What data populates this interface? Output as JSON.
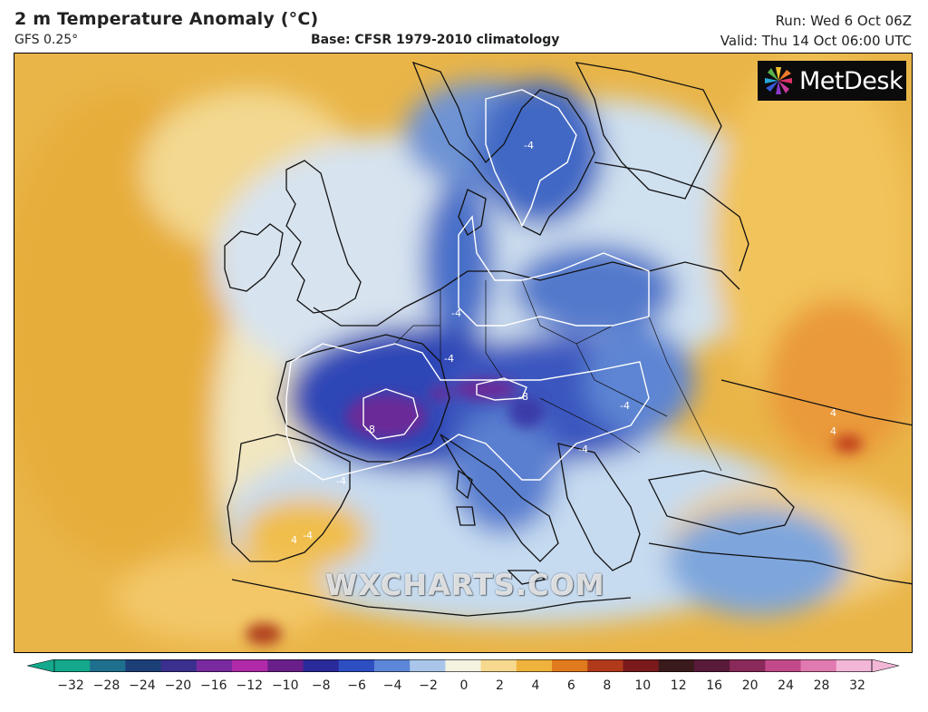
{
  "header": {
    "title": "2 m Temperature Anomaly (°C)",
    "model": "GFS 0.25°",
    "base": "Base: CFSR 1979-2010 climatology",
    "run": "Run: Wed 6 Oct 06Z",
    "valid": "Valid: Thu 14 Oct 06:00 UTC"
  },
  "logo": {
    "text": "MetDesk"
  },
  "watermark": "WXCHARTS.COM",
  "contour_labels": [
    "-4",
    "-4",
    "-8",
    "-4",
    "-4",
    "-4",
    "-8",
    "-4",
    "-4",
    "4",
    "4",
    "4"
  ],
  "colorbar": {
    "ticks": [
      "−32",
      "−28",
      "−24",
      "−20",
      "−16",
      "−12",
      "−10",
      "−8",
      "−6",
      "−4",
      "−2",
      "0",
      "2",
      "4",
      "6",
      "8",
      "10",
      "12",
      "16",
      "20",
      "24",
      "28",
      "32"
    ],
    "colors": [
      "#14a88c",
      "#1f6f8f",
      "#1c3f78",
      "#3b2f8f",
      "#7a2aa0",
      "#b02aa8",
      "#6a1f8a",
      "#2a2a9a",
      "#2e4fc2",
      "#5c86d8",
      "#a9c6ea",
      "#f4f2e0",
      "#f6d98e",
      "#efb23c",
      "#e07a1e",
      "#b03a1a",
      "#7a1a1a",
      "#3a1a1a",
      "#5a1a3a",
      "#8a2a5a",
      "#c24a8a",
      "#e07ab0",
      "#f2b6d6"
    ]
  }
}
